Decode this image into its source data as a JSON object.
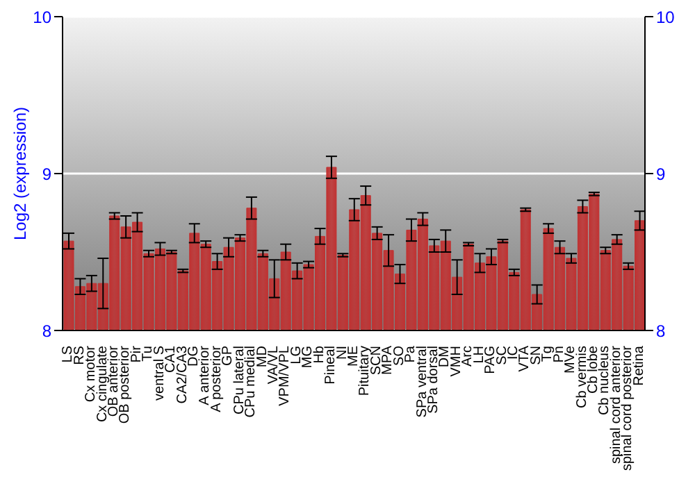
{
  "chart_data": {
    "type": "bar",
    "ylabel": "Log2 (expression)",
    "categories": [
      "LS",
      "RS",
      "Cx motor",
      "Cx cingulate",
      "OB anterior",
      "OB posterior",
      "Pir",
      "Tu",
      "ventral S",
      "CA1",
      "CA2/CA3",
      "DG",
      "A anterior",
      "A posterior",
      "GP",
      "CPu lateral",
      "CPu medial",
      "MD",
      "VA/VL",
      "VPM/VPL",
      "LG",
      "MG",
      "Hb",
      "Pineal",
      "NI",
      "ME",
      "Pituitary",
      "SCN",
      "MPA",
      "SO",
      "Pa",
      "SPa ventral",
      "SPa dorsal",
      "DM",
      "VMH",
      "Arc",
      "LH",
      "PAG",
      "SC",
      "IC",
      "VTA",
      "SN",
      "Tg",
      "Pn",
      "MVe",
      "Cb vermis",
      "Cb lobe",
      "Cb nucleus",
      "spinal cord anterior",
      "spinal cord posterior",
      "Retina"
    ],
    "values": [
      8.57,
      8.28,
      8.3,
      8.3,
      8.73,
      8.66,
      8.69,
      8.49,
      8.52,
      8.5,
      8.38,
      8.62,
      8.55,
      8.44,
      8.53,
      8.59,
      8.78,
      8.49,
      8.33,
      8.5,
      8.38,
      8.42,
      8.6,
      9.04,
      8.48,
      8.77,
      8.86,
      8.62,
      8.51,
      8.36,
      8.64,
      8.71,
      8.54,
      8.57,
      8.34,
      8.55,
      8.43,
      8.47,
      8.57,
      8.37,
      8.77,
      8.23,
      8.65,
      8.53,
      8.46,
      8.79,
      8.87,
      8.51,
      8.58,
      8.41,
      8.7
    ],
    "errors": [
      0.05,
      0.05,
      0.05,
      0.16,
      0.02,
      0.07,
      0.06,
      0.02,
      0.04,
      0.01,
      0.01,
      0.06,
      0.02,
      0.05,
      0.06,
      0.02,
      0.07,
      0.02,
      0.12,
      0.05,
      0.05,
      0.02,
      0.05,
      0.07,
      0.01,
      0.07,
      0.06,
      0.04,
      0.1,
      0.06,
      0.07,
      0.04,
      0.04,
      0.07,
      0.11,
      0.01,
      0.06,
      0.05,
      0.01,
      0.02,
      0.01,
      0.06,
      0.03,
      0.04,
      0.03,
      0.04,
      0.01,
      0.02,
      0.03,
      0.02,
      0.06
    ],
    "color": "#c03232",
    "ylim": [
      8,
      10
    ],
    "yticks": [
      8,
      9,
      10
    ],
    "y2lim": [
      8,
      10
    ],
    "y2ticks": [
      8,
      9,
      10
    ],
    "grid": "y",
    "legend": false
  }
}
